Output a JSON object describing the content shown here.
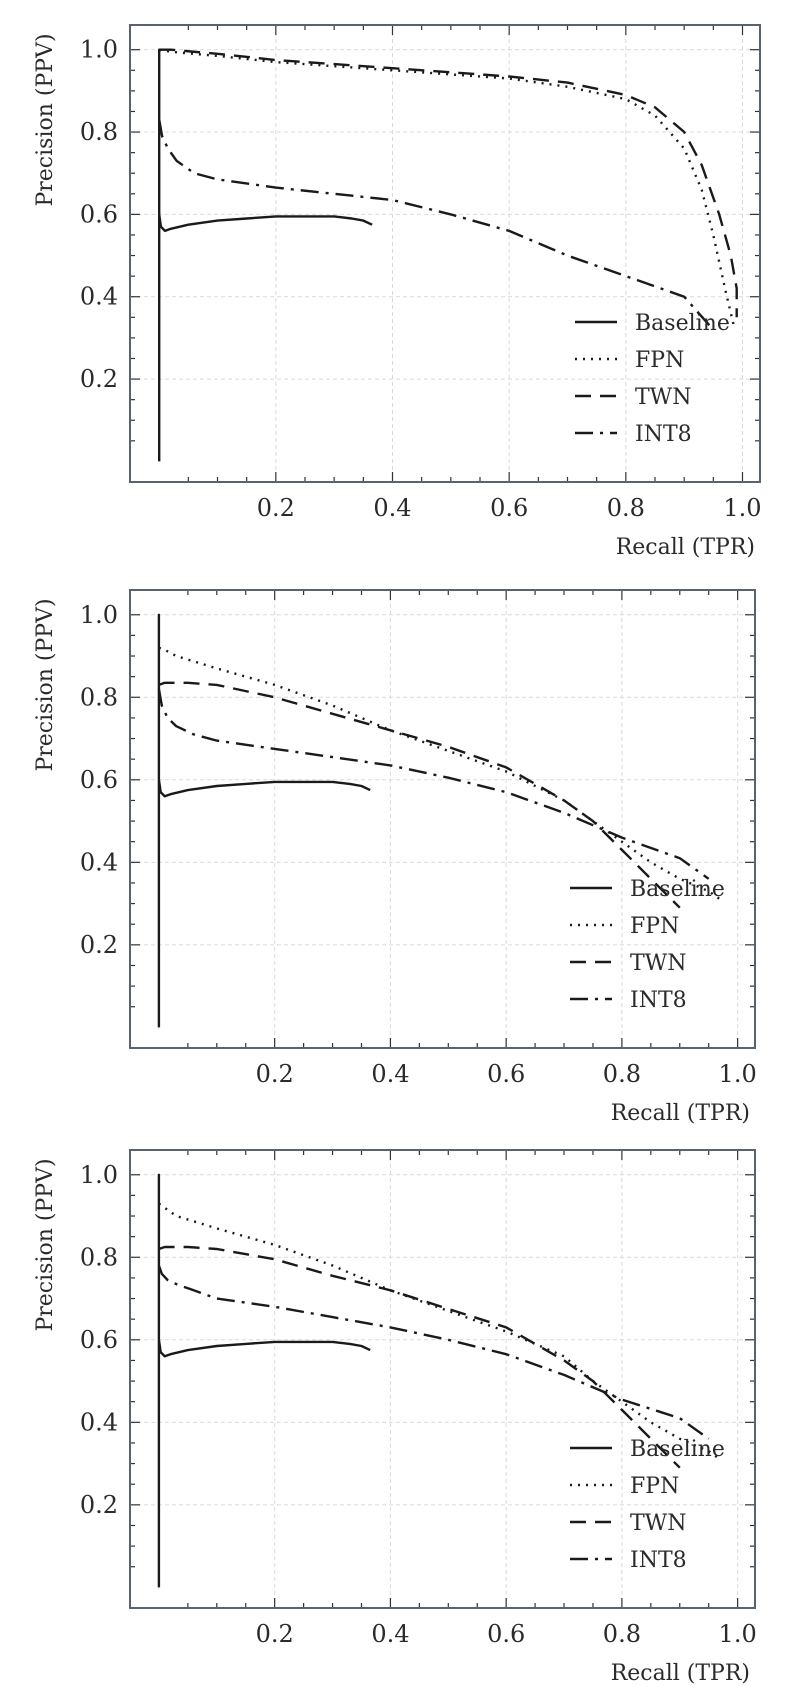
{
  "chart_data": [
    {
      "type": "line",
      "xlabel": "Recall (TPR)",
      "ylabel": "Precision (PPV)",
      "xlim": [
        -0.05,
        1.03
      ],
      "ylim": [
        -0.05,
        1.06
      ],
      "xticks": [
        "0.2",
        "0.4",
        "0.6",
        "0.8",
        "1.0"
      ],
      "yticks": [
        "0.2",
        "0.4",
        "0.6",
        "0.8",
        "1.0"
      ],
      "grid": true,
      "legend": "bottom-right",
      "series": [
        {
          "name": "Baseline",
          "style": "solid",
          "x": [
            0.0,
            0.0,
            0.0,
            0.003,
            0.01,
            0.02,
            0.05,
            0.1,
            0.15,
            0.2,
            0.25,
            0.3,
            0.33,
            0.35,
            0.365
          ],
          "y": [
            0.0,
            1.0,
            0.6,
            0.57,
            0.56,
            0.565,
            0.575,
            0.585,
            0.59,
            0.595,
            0.595,
            0.595,
            0.59,
            0.585,
            0.575
          ]
        },
        {
          "name": "FPN",
          "style": "dotted",
          "x": [
            0.0,
            0.02,
            0.1,
            0.2,
            0.3,
            0.4,
            0.5,
            0.6,
            0.7,
            0.8,
            0.85,
            0.9,
            0.93,
            0.95,
            0.97,
            0.985
          ],
          "y": [
            1.0,
            0.995,
            0.985,
            0.97,
            0.96,
            0.95,
            0.94,
            0.93,
            0.91,
            0.88,
            0.84,
            0.76,
            0.66,
            0.55,
            0.42,
            0.33
          ]
        },
        {
          "name": "TWN",
          "style": "dashed",
          "x": [
            0.0,
            0.02,
            0.1,
            0.2,
            0.3,
            0.4,
            0.5,
            0.6,
            0.7,
            0.8,
            0.85,
            0.9,
            0.93,
            0.96,
            0.98,
            0.99,
            0.99
          ],
          "y": [
            1.0,
            1.0,
            0.99,
            0.975,
            0.965,
            0.955,
            0.945,
            0.935,
            0.92,
            0.89,
            0.86,
            0.8,
            0.72,
            0.6,
            0.5,
            0.42,
            0.35
          ]
        },
        {
          "name": "INT8",
          "style": "dashdot",
          "x": [
            0.0,
            0.005,
            0.015,
            0.03,
            0.06,
            0.1,
            0.2,
            0.3,
            0.4,
            0.5,
            0.6,
            0.7,
            0.8,
            0.9,
            0.95
          ],
          "y": [
            0.83,
            0.79,
            0.76,
            0.73,
            0.7,
            0.685,
            0.665,
            0.65,
            0.635,
            0.6,
            0.56,
            0.5,
            0.45,
            0.4,
            0.32
          ]
        }
      ]
    },
    {
      "type": "line",
      "xlabel": "Recall (TPR)",
      "ylabel": "Precision (PPV)",
      "xlim": [
        -0.05,
        1.03
      ],
      "ylim": [
        -0.05,
        1.06
      ],
      "xticks": [
        "0.2",
        "0.4",
        "0.6",
        "0.8",
        "1.0"
      ],
      "yticks": [
        "0.2",
        "0.4",
        "0.6",
        "0.8",
        "1.0"
      ],
      "grid": true,
      "legend": "bottom-right",
      "series": [
        {
          "name": "Baseline",
          "style": "solid",
          "x": [
            0.0,
            0.0,
            0.0,
            0.003,
            0.01,
            0.02,
            0.05,
            0.1,
            0.15,
            0.2,
            0.25,
            0.3,
            0.33,
            0.35,
            0.365
          ],
          "y": [
            0.0,
            1.0,
            0.6,
            0.57,
            0.56,
            0.565,
            0.575,
            0.585,
            0.59,
            0.595,
            0.595,
            0.595,
            0.59,
            0.585,
            0.575
          ]
        },
        {
          "name": "FPN",
          "style": "dotted",
          "x": [
            0.0,
            0.01,
            0.03,
            0.1,
            0.2,
            0.3,
            0.4,
            0.5,
            0.6,
            0.7,
            0.75,
            0.8,
            0.85,
            0.9,
            0.95,
            0.97
          ],
          "y": [
            0.92,
            0.915,
            0.9,
            0.87,
            0.83,
            0.78,
            0.72,
            0.67,
            0.62,
            0.55,
            0.5,
            0.45,
            0.4,
            0.36,
            0.33,
            0.31
          ]
        },
        {
          "name": "TWN",
          "style": "dashed",
          "x": [
            0.0,
            0.01,
            0.05,
            0.1,
            0.2,
            0.3,
            0.4,
            0.5,
            0.6,
            0.7,
            0.75,
            0.8,
            0.85,
            0.9
          ],
          "y": [
            0.83,
            0.835,
            0.835,
            0.83,
            0.8,
            0.76,
            0.72,
            0.68,
            0.63,
            0.55,
            0.5,
            0.43,
            0.36,
            0.29
          ]
        },
        {
          "name": "INT8",
          "style": "dashdot",
          "x": [
            0.0,
            0.005,
            0.015,
            0.03,
            0.06,
            0.1,
            0.2,
            0.3,
            0.4,
            0.5,
            0.6,
            0.7,
            0.8,
            0.9,
            0.95
          ],
          "y": [
            0.82,
            0.78,
            0.75,
            0.73,
            0.71,
            0.695,
            0.675,
            0.655,
            0.635,
            0.605,
            0.57,
            0.52,
            0.46,
            0.41,
            0.36
          ]
        }
      ]
    },
    {
      "type": "line",
      "xlabel": "Recall (TPR)",
      "ylabel": "Precision (PPV)",
      "xlim": [
        -0.05,
        1.03
      ],
      "ylim": [
        -0.05,
        1.06
      ],
      "xticks": [
        "0.2",
        "0.4",
        "0.6",
        "0.8",
        "1.0"
      ],
      "yticks": [
        "0.2",
        "0.4",
        "0.6",
        "0.8",
        "1.0"
      ],
      "grid": true,
      "legend": "bottom-right",
      "series": [
        {
          "name": "Baseline",
          "style": "solid",
          "x": [
            0.0,
            0.0,
            0.0,
            0.003,
            0.01,
            0.02,
            0.05,
            0.1,
            0.15,
            0.2,
            0.25,
            0.3,
            0.33,
            0.35,
            0.365
          ],
          "y": [
            0.0,
            1.0,
            0.6,
            0.57,
            0.56,
            0.565,
            0.575,
            0.585,
            0.59,
            0.595,
            0.595,
            0.595,
            0.59,
            0.585,
            0.575
          ]
        },
        {
          "name": "FPN",
          "style": "dotted",
          "x": [
            0.0,
            0.01,
            0.03,
            0.1,
            0.2,
            0.3,
            0.4,
            0.5,
            0.6,
            0.7,
            0.75,
            0.8,
            0.85,
            0.9,
            0.95,
            0.97
          ],
          "y": [
            0.93,
            0.92,
            0.9,
            0.87,
            0.83,
            0.78,
            0.72,
            0.67,
            0.62,
            0.56,
            0.5,
            0.45,
            0.4,
            0.36,
            0.33,
            0.31
          ]
        },
        {
          "name": "TWN",
          "style": "dashed",
          "x": [
            0.0,
            0.01,
            0.05,
            0.1,
            0.2,
            0.3,
            0.4,
            0.5,
            0.6,
            0.7,
            0.75,
            0.8,
            0.85,
            0.9
          ],
          "y": [
            0.82,
            0.825,
            0.825,
            0.82,
            0.795,
            0.755,
            0.72,
            0.675,
            0.63,
            0.55,
            0.5,
            0.43,
            0.36,
            0.29
          ]
        },
        {
          "name": "INT8",
          "style": "dashdot",
          "x": [
            0.0,
            0.005,
            0.015,
            0.03,
            0.06,
            0.1,
            0.2,
            0.3,
            0.4,
            0.5,
            0.6,
            0.7,
            0.8,
            0.9,
            0.95
          ],
          "y": [
            0.78,
            0.76,
            0.745,
            0.735,
            0.72,
            0.7,
            0.68,
            0.655,
            0.63,
            0.6,
            0.565,
            0.515,
            0.455,
            0.41,
            0.36
          ]
        }
      ]
    }
  ]
}
